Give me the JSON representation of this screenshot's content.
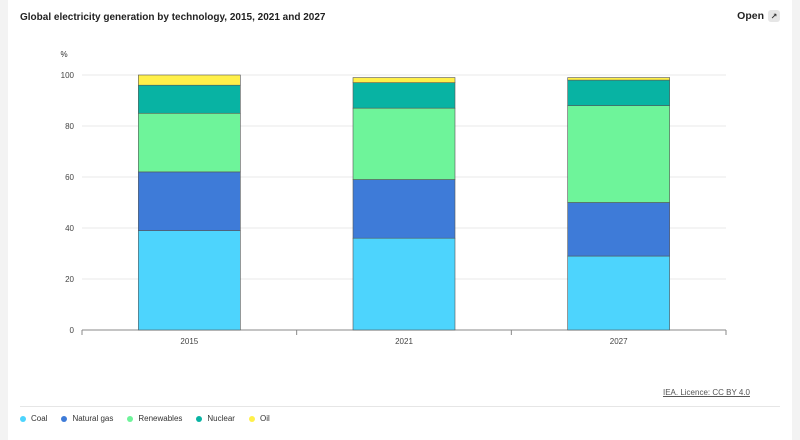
{
  "header": {
    "title": "Global electricity generation by technology, 2015, 2021 and 2027",
    "open_label": "Open",
    "open_icon": "expand-icon"
  },
  "footer": {
    "licence": "IEA. Licence: CC BY 4.0"
  },
  "chart_data": {
    "type": "bar",
    "stacked": true,
    "title": "Global electricity generation by technology, 2015, 2021 and 2027",
    "ylabel": "%",
    "xlabel": "",
    "ylim": [
      0,
      100
    ],
    "yticks": [
      0,
      20,
      40,
      60,
      80,
      100
    ],
    "grid": true,
    "legend_position": "bottom-left",
    "categories": [
      "2015",
      "2021",
      "2027"
    ],
    "series": [
      {
        "name": "Coal",
        "color": "#4dd4fd",
        "values": [
          39,
          36,
          29
        ]
      },
      {
        "name": "Natural gas",
        "color": "#3e7bd8",
        "values": [
          23,
          23,
          21
        ]
      },
      {
        "name": "Renewables",
        "color": "#6ef49a",
        "values": [
          23,
          28,
          38
        ]
      },
      {
        "name": "Nuclear",
        "color": "#08b3a3",
        "values": [
          11,
          10,
          10
        ]
      },
      {
        "name": "Oil",
        "color": "#fff04a",
        "values": [
          4,
          2,
          1
        ]
      }
    ]
  }
}
